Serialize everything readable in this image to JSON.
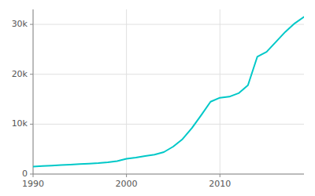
{
  "chart_data": {
    "type": "line",
    "x": [
      1990,
      1991,
      1992,
      1993,
      1994,
      1995,
      1996,
      1997,
      1998,
      1999,
      2000,
      2001,
      2002,
      2003,
      2004,
      2005,
      2006,
      2007,
      2008,
      2009,
      2010,
      2011,
      2012,
      2013,
      2014,
      2015,
      2016,
      2017,
      2018,
      2019
    ],
    "values": [
      1500,
      1600,
      1700,
      1800,
      1900,
      2000,
      2100,
      2200,
      2350,
      2600,
      3050,
      3300,
      3600,
      3900,
      4400,
      5500,
      7000,
      9200,
      11800,
      14500,
      15300,
      15500,
      16200,
      17800,
      23500,
      24500,
      26500,
      28500,
      30200,
      31500
    ],
    "color": "#00C8C8",
    "xlim": [
      1990,
      2019
    ],
    "ylim": [
      0,
      33000
    ],
    "xticks": [
      1990,
      2000,
      2010
    ],
    "yticks": [
      0,
      {
        "value": 10000,
        "label": "10k"
      },
      {
        "value": 20000,
        "label": "20k"
      },
      {
        "value": 30000,
        "label": "30k"
      }
    ],
    "grid": true
  }
}
